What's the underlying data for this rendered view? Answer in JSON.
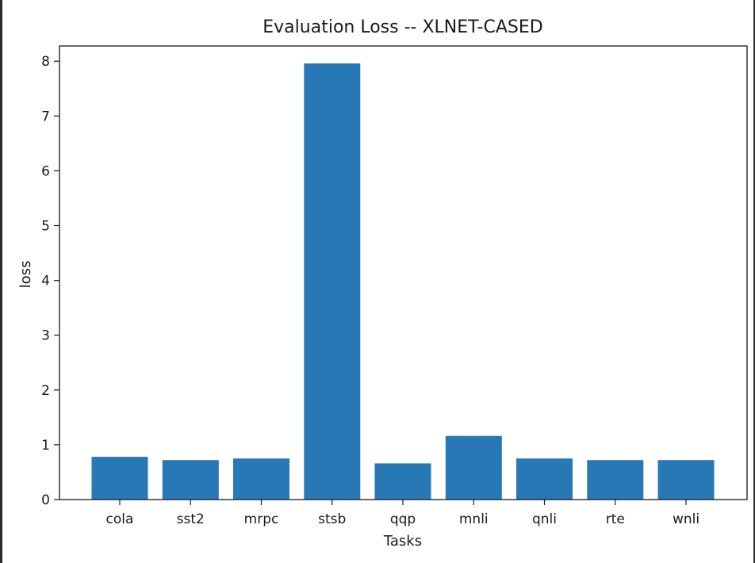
{
  "chart_data": {
    "type": "bar",
    "title": "Evaluation Loss -- XLNET-CASED",
    "xlabel": "Tasks",
    "ylabel": "loss",
    "categories": [
      "cola",
      "sst2",
      "mrpc",
      "stsb",
      "qqp",
      "mnli",
      "qnli",
      "rte",
      "wnli"
    ],
    "values": [
      0.78,
      0.72,
      0.75,
      7.96,
      0.66,
      1.16,
      0.75,
      0.72,
      0.72
    ],
    "ylim": [
      0,
      8.4
    ],
    "yticks": [
      0,
      1,
      2,
      3,
      4,
      5,
      6,
      7,
      8
    ],
    "bar_color": "#2878b5",
    "grid": false,
    "legend": false
  }
}
